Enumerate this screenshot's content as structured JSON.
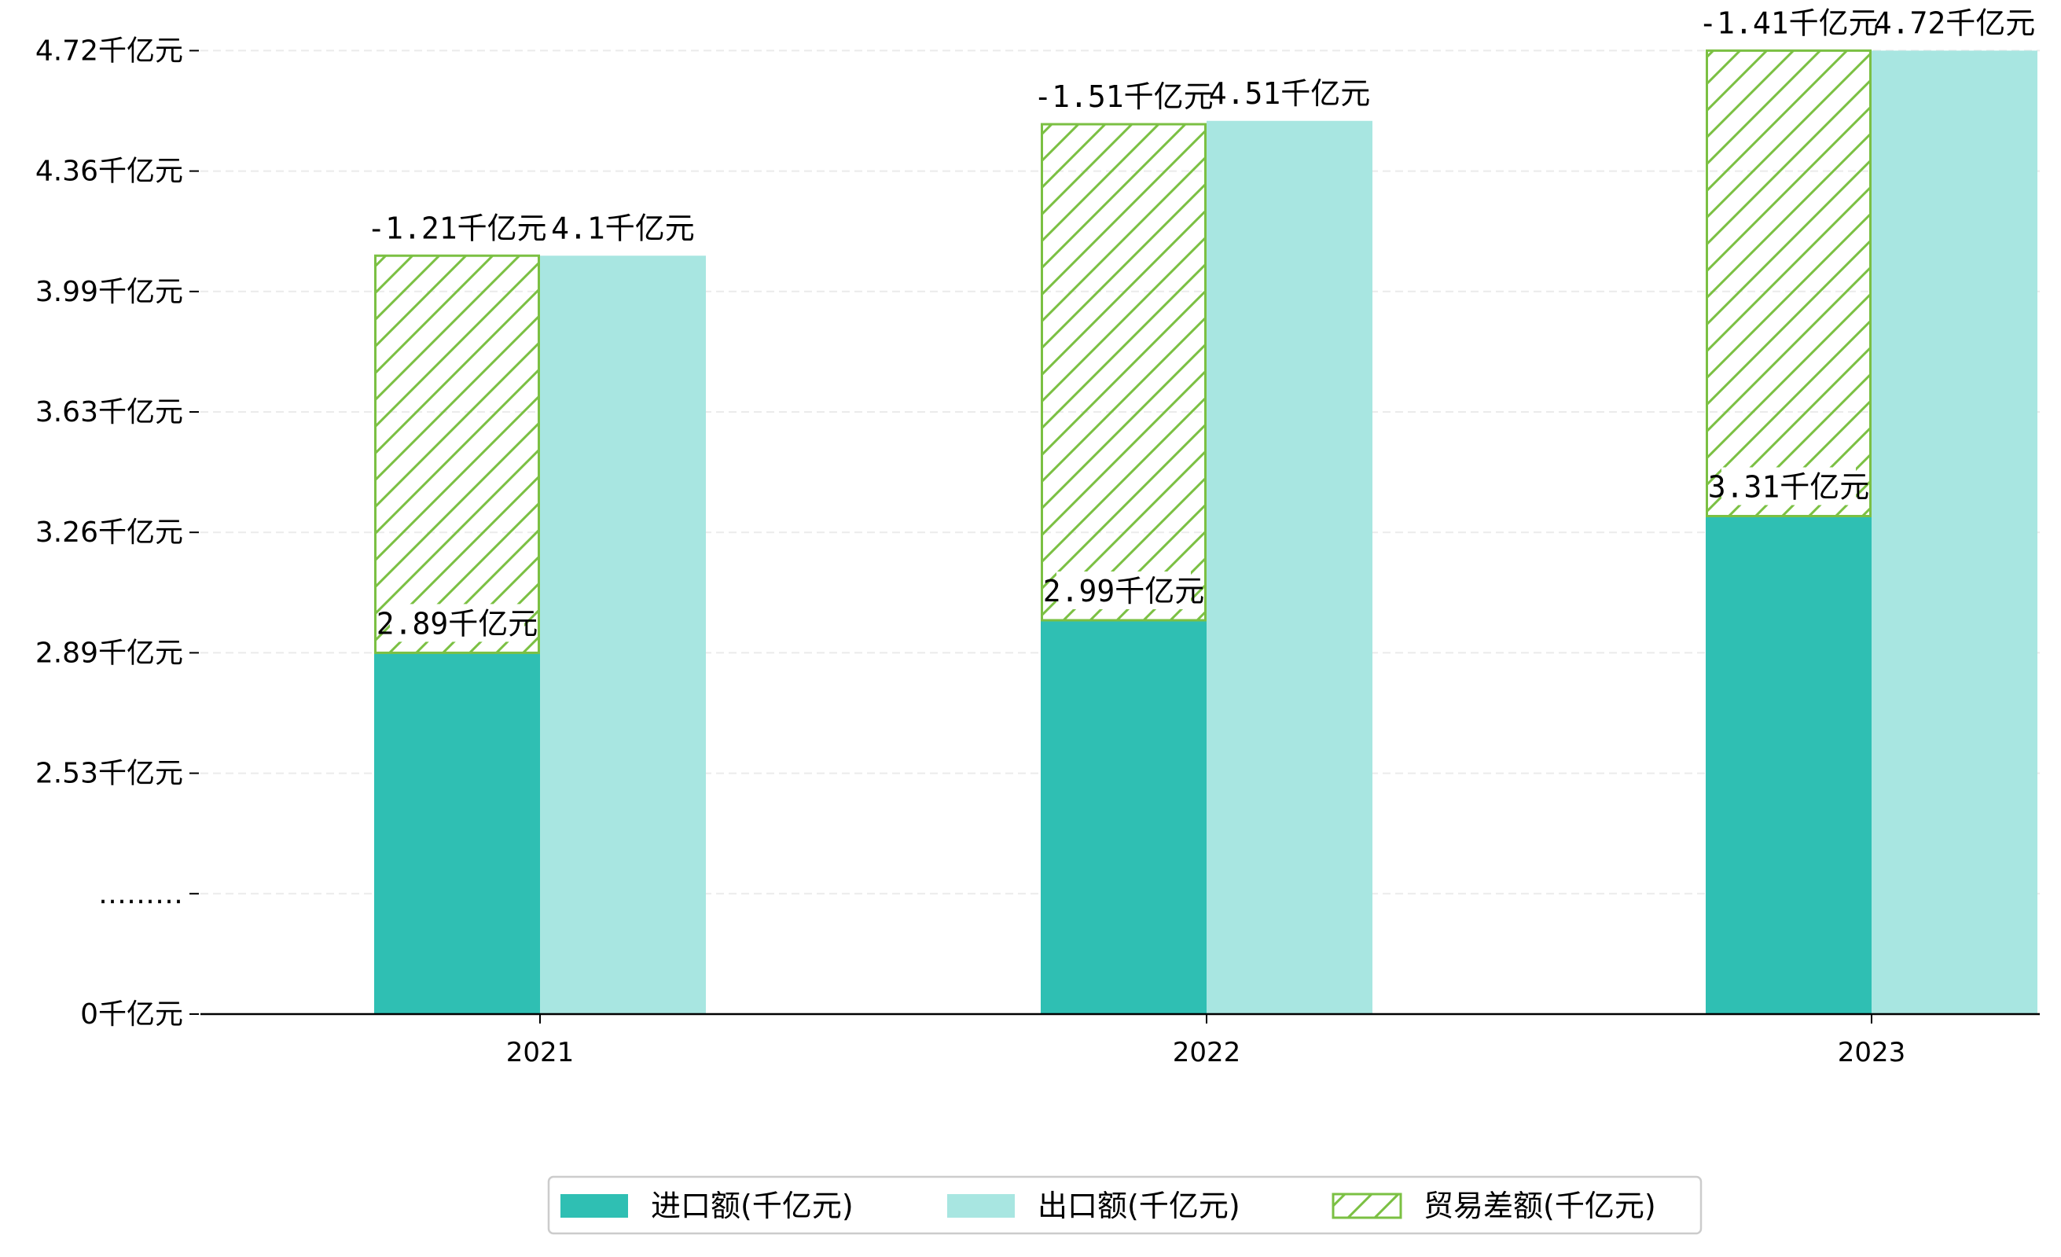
{
  "chart_data": {
    "type": "bar",
    "categories": [
      "2021",
      "2022",
      "2023"
    ],
    "series": [
      {
        "name": "进口额(千亿元)",
        "values": [
          2.89,
          2.99,
          3.31
        ]
      },
      {
        "name": "出口额(千亿元)",
        "values": [
          4.1,
          4.51,
          4.72
        ]
      },
      {
        "name": "贸易差额(千亿元)",
        "values": [
          -1.21,
          -1.51,
          -1.41
        ]
      }
    ],
    "data_labels": {
      "import": [
        "2.89千亿元",
        "2.99千亿元",
        "3.31千亿元"
      ],
      "export": [
        "4.1千亿元",
        "4.51千亿元",
        "4.72千亿元"
      ],
      "balance": [
        "-1.21千亿元",
        "-1.51千亿元",
        "-1.41千亿元"
      ]
    },
    "y_ticks": [
      {
        "label": "0千亿元",
        "value": 0
      },
      {
        "label": "………",
        "value": null
      },
      {
        "label": "2.53千亿元",
        "value": 2.53
      },
      {
        "label": "2.89千亿元",
        "value": 2.89
      },
      {
        "label": "3.26千亿元",
        "value": 3.26
      },
      {
        "label": "3.63千亿元",
        "value": 3.63
      },
      {
        "label": "3.99千亿元",
        "value": 3.99
      },
      {
        "label": "4.36千亿元",
        "value": 4.36
      },
      {
        "label": "4.72千亿元",
        "value": 4.72
      }
    ],
    "axis_break": true,
    "ylim": [
      0,
      4.72
    ],
    "grid": "horizontal-dashed",
    "legend_position": "bottom-center",
    "colors": {
      "import": "#2fbfb3",
      "export": "#a8e6e1",
      "balance_hatch": "#7bc043"
    }
  }
}
